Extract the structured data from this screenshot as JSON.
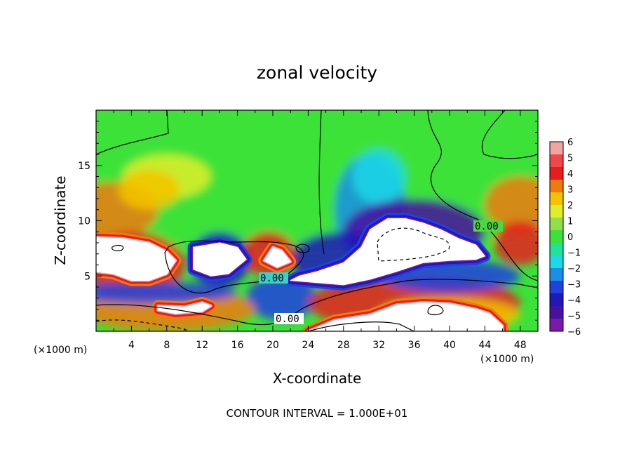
{
  "chart_data": {
    "type": "heatmap",
    "title": "zonal velocity",
    "xlabel": "X-coordinate",
    "ylabel": "Z-coordinate",
    "x_unit": "(×1000 m)",
    "y_unit": "(×1000 m)",
    "xlim": [
      0,
      50
    ],
    "ylim": [
      0,
      20
    ],
    "x_ticks": [
      4,
      8,
      12,
      16,
      20,
      24,
      28,
      32,
      36,
      40,
      44,
      48
    ],
    "y_ticks": [
      5,
      10,
      15
    ],
    "colorbar": {
      "levels": [
        6,
        5,
        4,
        3,
        2,
        1,
        0,
        -1,
        -2,
        -3,
        -4,
        -5,
        -6
      ],
      "colors": [
        "#f4a3a3",
        "#f04848",
        "#e81c1c",
        "#f07a10",
        "#f5c400",
        "#dfee2a",
        "#8fe04a",
        "#3ce23a",
        "#20e29a",
        "#1cd8e8",
        "#1b8ee8",
        "#2040e0",
        "#2018b8",
        "#4a10a0",
        "#7a1aa8"
      ]
    },
    "contour_labels": [
      "0.00",
      "0.00",
      "0.00"
    ],
    "annotation": "CONTOUR INTERVAL = 1.000E+01",
    "field_blobs": [
      {
        "x": 25,
        "y": 15,
        "rx": 40,
        "ry": 8,
        "v": 0.3
      },
      {
        "x": 8,
        "y": 14,
        "rx": 5,
        "ry": 2,
        "v": 1.5
      },
      {
        "x": 2,
        "y": 11,
        "rx": 5,
        "ry": 2.5,
        "v": 3.8
      },
      {
        "x": 6,
        "y": 12.8,
        "rx": 3.5,
        "ry": 1.8,
        "v": 2.6
      },
      {
        "x": 48,
        "y": 11.5,
        "rx": 4,
        "ry": 2.5,
        "v": 3.2
      },
      {
        "x": 31,
        "y": 11,
        "rx": 4,
        "ry": 5,
        "v": -2.6
      },
      {
        "x": 32,
        "y": 14,
        "rx": 3,
        "ry": 2.5,
        "v": -1.8
      },
      {
        "x": 36,
        "y": 9,
        "rx": 8,
        "ry": 3,
        "v": -5.5
      },
      {
        "x": 28,
        "y": 6.5,
        "rx": 6,
        "ry": 2.5,
        "v": -4.5
      },
      {
        "x": 21,
        "y": 3,
        "rx": 4,
        "ry": 2,
        "v": -3.0
      },
      {
        "x": 14,
        "y": 6.5,
        "rx": 3.5,
        "ry": 2.5,
        "v": -4.5
      },
      {
        "x": 19.5,
        "y": 7,
        "rx": 3,
        "ry": 2,
        "v": 4.5
      },
      {
        "x": 4,
        "y": 6,
        "rx": 6,
        "ry": 3,
        "v": 4.5
      },
      {
        "x": 8,
        "y": 2,
        "rx": 10,
        "ry": 2,
        "v": 3.5
      },
      {
        "x": 6,
        "y": 3.5,
        "rx": 10,
        "ry": 1,
        "v": -3.5
      },
      {
        "x": 36,
        "y": 2.5,
        "rx": 12,
        "ry": 2.5,
        "v": 4.0
      },
      {
        "x": 40,
        "y": 5,
        "rx": 8,
        "ry": 1.5,
        "v": -3.5
      },
      {
        "x": 48,
        "y": 8,
        "rx": 3,
        "ry": 2,
        "v": 4.0
      },
      {
        "x": 40,
        "y": 1.5,
        "rx": 8,
        "ry": 1.5,
        "v": 3.0
      }
    ],
    "saturated_regions": [
      {
        "sign": "positive",
        "outline": [
          [
            0,
            8.5
          ],
          [
            3,
            8.4
          ],
          [
            6,
            8
          ],
          [
            8,
            7.2
          ],
          [
            9,
            6.4
          ],
          [
            8,
            5.2
          ],
          [
            6,
            4.6
          ],
          [
            4,
            4.6
          ],
          [
            2,
            5.2
          ],
          [
            0,
            5.4
          ]
        ]
      },
      {
        "sign": "positive",
        "outline": [
          [
            7,
            2.3
          ],
          [
            10,
            2.2
          ],
          [
            12,
            2.6
          ],
          [
            13,
            2.3
          ],
          [
            12,
            1.8
          ],
          [
            9,
            1.6
          ],
          [
            7,
            1.9
          ]
        ]
      },
      {
        "sign": "positive",
        "outline": [
          [
            19,
            6.4
          ],
          [
            20,
            7.6
          ],
          [
            21,
            7.3
          ],
          [
            22,
            6.3
          ],
          [
            20.5,
            5.8
          ]
        ]
      },
      {
        "sign": "positive",
        "outline": [
          [
            24,
            0
          ],
          [
            27,
            1
          ],
          [
            31,
            1.5
          ],
          [
            34,
            2.4
          ],
          [
            37,
            2.6
          ],
          [
            40,
            2.5
          ],
          [
            43,
            2
          ],
          [
            44.5,
            1.6
          ],
          [
            46,
            0.5
          ],
          [
            46,
            0
          ]
        ]
      },
      {
        "sign": "negative",
        "outline": [
          [
            11,
            7.6
          ],
          [
            14,
            8
          ],
          [
            16,
            7.6
          ],
          [
            17,
            6.5
          ],
          [
            15,
            5.2
          ],
          [
            13,
            5
          ],
          [
            11,
            5.6
          ],
          [
            11,
            6.8
          ]
        ]
      },
      {
        "sign": "negative",
        "outline": [
          [
            22,
            4.6
          ],
          [
            25,
            4.4
          ],
          [
            28,
            4.2
          ],
          [
            31,
            4.7
          ],
          [
            34,
            5.4
          ],
          [
            37,
            6.2
          ],
          [
            40,
            6.4
          ],
          [
            43,
            6.5
          ],
          [
            44,
            6.8
          ],
          [
            43,
            7.8
          ],
          [
            41,
            8.4
          ],
          [
            39,
            9.2
          ],
          [
            37,
            9.8
          ],
          [
            35,
            10.2
          ],
          [
            33,
            10.2
          ],
          [
            31,
            9.2
          ],
          [
            30,
            7.6
          ],
          [
            28,
            6.2
          ],
          [
            25,
            5.4
          ],
          [
            23,
            5
          ]
        ]
      }
    ]
  }
}
